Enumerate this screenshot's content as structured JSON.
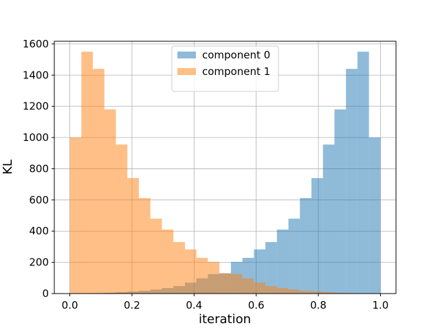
{
  "chart_data": {
    "type": "histogram",
    "xlabel": "iteration",
    "ylabel": "KL",
    "bins": [
      0,
      0.037,
      0.0741,
      0.1111,
      0.1481,
      0.1852,
      0.2222,
      0.2593,
      0.2963,
      0.3333,
      0.3704,
      0.4074,
      0.4444,
      0.4815,
      0.5185,
      0.5556,
      0.5926,
      0.6296,
      0.6667,
      0.7037,
      0.7407,
      0.7778,
      0.8148,
      0.8519,
      0.8889,
      0.9259,
      0.963,
      1
    ],
    "series": [
      {
        "name": "component 0",
        "color": "#1f77b4",
        "values": [
          0,
          1,
          3,
          5,
          9,
          13,
          18,
          26,
          35,
          48,
          70,
          97,
          125,
          130,
          203,
          229,
          283,
          330,
          410,
          480,
          612,
          740,
          955,
          1180,
          1440,
          1550,
          1000
        ]
      },
      {
        "name": "component 1",
        "color": "#ff7f0e",
        "values": [
          1000,
          1550,
          1440,
          1180,
          955,
          740,
          612,
          480,
          410,
          330,
          283,
          229,
          203,
          130,
          125,
          97,
          70,
          48,
          35,
          26,
          18,
          13,
          9,
          5,
          3,
          1,
          0
        ]
      }
    ],
    "alpha": 0.5,
    "xlim": [
      -0.05,
      1.05
    ],
    "ylim": [
      0,
      1617
    ],
    "xticks": [
      {
        "value": 0,
        "label": "0.0"
      },
      {
        "value": 0.2,
        "label": "0.2"
      },
      {
        "value": 0.4,
        "label": "0.4"
      },
      {
        "value": 0.6,
        "label": "0.6"
      },
      {
        "value": 0.8,
        "label": "0.8"
      },
      {
        "value": 1,
        "label": "1.0"
      }
    ],
    "yticks": [
      0,
      200,
      400,
      600,
      800,
      1000,
      1200,
      1400,
      1600
    ],
    "grid": true,
    "legend": "upper center"
  }
}
